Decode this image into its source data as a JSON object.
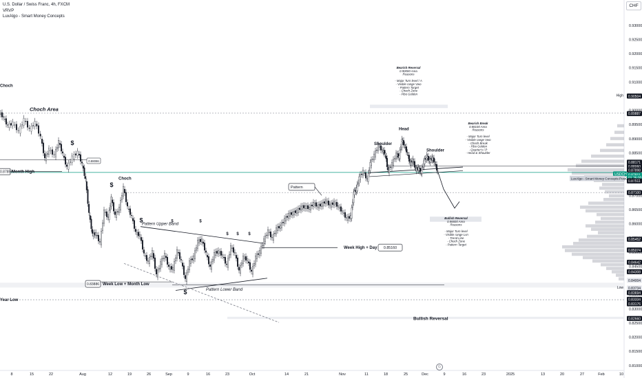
{
  "legend": {
    "symbol_line": "U.S. Dollar / Swiss Franc, 4h, FXCM",
    "volume_line": "VRVP",
    "indicator_line": "LuxAlgo - Smart Money Concepts"
  },
  "currency_label": "CHF",
  "colors": {
    "candle_up": "#131722",
    "candle_down": "#131722",
    "price_line": "#089981",
    "profile": "#b2b5be",
    "dashed": "#9598a1",
    "zone": "#d1d4dc"
  },
  "chart_data": {
    "type": "candlestick",
    "price_axis": {
      "min": 0.8085,
      "max": 0.9365,
      "ticks": [
        "0.93000",
        "0.92500",
        "0.92000",
        "0.91500",
        "0.91000",
        "0.90500",
        "0.90000",
        "0.89500",
        "0.89000",
        "0.88500",
        "0.88000",
        "0.87500",
        "0.87000",
        "0.86500",
        "0.86000",
        "0.85500",
        "0.85000",
        "0.84500",
        "0.84000",
        "0.83500",
        "0.83000",
        "0.82500",
        "0.82000",
        "0.81500",
        "0.81000"
      ]
    },
    "time_axis_labels": [
      "8",
      "15",
      "22",
      "Aug",
      "12",
      "19",
      "26",
      "Sep",
      "9",
      "16",
      "23",
      "Oct",
      "14",
      "21",
      "Nov",
      "11",
      "18",
      "25",
      "Dec",
      "9",
      "16",
      "23",
      "2025",
      "13",
      "20",
      "27",
      "Feb",
      "10"
    ],
    "price_tags": [
      {
        "text": "High",
        "kind": "label",
        "price": 0.9053
      },
      {
        "text": "0.90504",
        "kind": "dark",
        "price": 0.90504
      },
      {
        "text": "0.89887",
        "kind": "dark",
        "price": 0.89887
      },
      {
        "text": "0.88171",
        "kind": "dark",
        "price": 0.88171
      },
      {
        "text": "0.88060",
        "kind": "dark",
        "price": 0.8803
      },
      {
        "text": "0.87898",
        "kind": "dark",
        "price": 0.87898
      },
      {
        "text": "USDCHF",
        "kind": "green",
        "price": 0.8776
      },
      {
        "text": "0.87811",
        "kind": "green",
        "price": 0.8772
      },
      {
        "text": "01:36:00",
        "kind": "green",
        "price": 0.8762
      },
      {
        "text": "0.87511",
        "kind": "dark",
        "price": 0.87511
      },
      {
        "text": "0.87100",
        "kind": "dark",
        "price": 0.871
      },
      {
        "text": "0.85452",
        "kind": "dark",
        "price": 0.85452
      },
      {
        "text": "0.85074",
        "kind": "dark",
        "price": 0.85074
      },
      {
        "text": "0.84642",
        "kind": "dark",
        "price": 0.84642
      },
      {
        "text": "0.84308",
        "kind": "dark",
        "price": 0.84308
      },
      {
        "text": "0.84004",
        "kind": "light",
        "price": 0.84004
      },
      {
        "text": "Low",
        "kind": "label",
        "price": 0.8376
      },
      {
        "text": "0.83734",
        "kind": "light",
        "price": 0.83734
      },
      {
        "text": "0.83694",
        "kind": "dark",
        "price": 0.8357
      },
      {
        "text": "0.83334",
        "kind": "dark",
        "price": 0.83334
      },
      {
        "text": "0.83176",
        "kind": "dark",
        "price": 0.83176
      },
      {
        "text": "0.82660",
        "kind": "dark",
        "price": 0.8266
      }
    ],
    "price_series": [
      {
        "x": 0,
        "y": 0.8992
      },
      {
        "x": 6,
        "y": 0.8975
      },
      {
        "x": 12,
        "y": 0.8945
      },
      {
        "x": 20,
        "y": 0.8955
      },
      {
        "x": 28,
        "y": 0.8925
      },
      {
        "x": 36,
        "y": 0.8968
      },
      {
        "x": 44,
        "y": 0.8932
      },
      {
        "x": 52,
        "y": 0.8958
      },
      {
        "x": 60,
        "y": 0.8905
      },
      {
        "x": 66,
        "y": 0.8828
      },
      {
        "x": 72,
        "y": 0.8862
      },
      {
        "x": 80,
        "y": 0.8842
      },
      {
        "x": 86,
        "y": 0.889
      },
      {
        "x": 92,
        "y": 0.8845
      },
      {
        "x": 98,
        "y": 0.8798
      },
      {
        "x": 106,
        "y": 0.8835
      },
      {
        "x": 114,
        "y": 0.8852
      },
      {
        "x": 120,
        "y": 0.881
      },
      {
        "x": 125,
        "y": 0.8755
      },
      {
        "x": 130,
        "y": 0.8635
      },
      {
        "x": 135,
        "y": 0.8562
      },
      {
        "x": 140,
        "y": 0.8565
      },
      {
        "x": 146,
        "y": 0.8532
      },
      {
        "x": 152,
        "y": 0.8645
      },
      {
        "x": 158,
        "y": 0.862
      },
      {
        "x": 162,
        "y": 0.869
      },
      {
        "x": 168,
        "y": 0.8628
      },
      {
        "x": 174,
        "y": 0.8655
      },
      {
        "x": 180,
        "y": 0.8728
      },
      {
        "x": 186,
        "y": 0.8658
      },
      {
        "x": 192,
        "y": 0.8625
      },
      {
        "x": 198,
        "y": 0.8568
      },
      {
        "x": 204,
        "y": 0.8558
      },
      {
        "x": 210,
        "y": 0.8492
      },
      {
        "x": 216,
        "y": 0.8465
      },
      {
        "x": 222,
        "y": 0.8502
      },
      {
        "x": 228,
        "y": 0.8418
      },
      {
        "x": 234,
        "y": 0.8462
      },
      {
        "x": 240,
        "y": 0.8492
      },
      {
        "x": 246,
        "y": 0.8445
      },
      {
        "x": 252,
        "y": 0.8442
      },
      {
        "x": 258,
        "y": 0.8505
      },
      {
        "x": 264,
        "y": 0.8468
      },
      {
        "x": 270,
        "y": 0.8402
      },
      {
        "x": 276,
        "y": 0.8465
      },
      {
        "x": 282,
        "y": 0.8482
      },
      {
        "x": 288,
        "y": 0.8538
      },
      {
        "x": 294,
        "y": 0.8542
      },
      {
        "x": 300,
        "y": 0.8495
      },
      {
        "x": 306,
        "y": 0.8445
      },
      {
        "x": 312,
        "y": 0.8495
      },
      {
        "x": 318,
        "y": 0.8502
      },
      {
        "x": 324,
        "y": 0.8488
      },
      {
        "x": 330,
        "y": 0.8452
      },
      {
        "x": 336,
        "y": 0.8518
      },
      {
        "x": 342,
        "y": 0.8495
      },
      {
        "x": 348,
        "y": 0.8432
      },
      {
        "x": 354,
        "y": 0.8482
      },
      {
        "x": 360,
        "y": 0.8472
      },
      {
        "x": 366,
        "y": 0.8428
      },
      {
        "x": 372,
        "y": 0.8482
      },
      {
        "x": 378,
        "y": 0.8502
      },
      {
        "x": 384,
        "y": 0.8542
      },
      {
        "x": 390,
        "y": 0.8575
      },
      {
        "x": 396,
        "y": 0.8548
      },
      {
        "x": 402,
        "y": 0.8582
      },
      {
        "x": 408,
        "y": 0.8592
      },
      {
        "x": 414,
        "y": 0.8615
      },
      {
        "x": 420,
        "y": 0.8632
      },
      {
        "x": 426,
        "y": 0.8638
      },
      {
        "x": 432,
        "y": 0.8645
      },
      {
        "x": 438,
        "y": 0.8658
      },
      {
        "x": 444,
        "y": 0.866
      },
      {
        "x": 450,
        "y": 0.8655
      },
      {
        "x": 456,
        "y": 0.8672
      },
      {
        "x": 462,
        "y": 0.8662
      },
      {
        "x": 468,
        "y": 0.8668
      },
      {
        "x": 474,
        "y": 0.868
      },
      {
        "x": 480,
        "y": 0.8665
      },
      {
        "x": 486,
        "y": 0.8675
      },
      {
        "x": 492,
        "y": 0.866
      },
      {
        "x": 498,
        "y": 0.8642
      },
      {
        "x": 504,
        "y": 0.8618
      },
      {
        "x": 510,
        "y": 0.8625
      },
      {
        "x": 514,
        "y": 0.8708
      },
      {
        "x": 518,
        "y": 0.8722
      },
      {
        "x": 522,
        "y": 0.8762
      },
      {
        "x": 528,
        "y": 0.8785
      },
      {
        "x": 534,
        "y": 0.8755
      },
      {
        "x": 538,
        "y": 0.8812
      },
      {
        "x": 544,
        "y": 0.8842
      },
      {
        "x": 550,
        "y": 0.8875
      },
      {
        "x": 556,
        "y": 0.8858
      },
      {
        "x": 560,
        "y": 0.8845
      },
      {
        "x": 564,
        "y": 0.8785
      },
      {
        "x": 570,
        "y": 0.8812
      },
      {
        "x": 576,
        "y": 0.8845
      },
      {
        "x": 580,
        "y": 0.8835
      },
      {
        "x": 584,
        "y": 0.8895
      },
      {
        "x": 588,
        "y": 0.8875
      },
      {
        "x": 592,
        "y": 0.8848
      },
      {
        "x": 596,
        "y": 0.8812
      },
      {
        "x": 600,
        "y": 0.8825
      },
      {
        "x": 604,
        "y": 0.8792
      },
      {
        "x": 608,
        "y": 0.8795
      },
      {
        "x": 612,
        "y": 0.8782
      },
      {
        "x": 616,
        "y": 0.8818
      },
      {
        "x": 620,
        "y": 0.8838
      },
      {
        "x": 624,
        "y": 0.8822
      },
      {
        "x": 628,
        "y": 0.8832
      },
      {
        "x": 632,
        "y": 0.8815
      },
      {
        "x": 636,
        "y": 0.8781
      }
    ],
    "projection_path": [
      {
        "x": 636,
        "y": 0.8781
      },
      {
        "x": 644,
        "y": 0.8722
      },
      {
        "x": 660,
        "y": 0.8655
      },
      {
        "x": 667,
        "y": 0.8678
      }
    ],
    "volume_profile": [
      {
        "price": 0.8945,
        "len": 10
      },
      {
        "price": 0.8922,
        "len": 14
      },
      {
        "price": 0.89,
        "len": 20
      },
      {
        "price": 0.8878,
        "len": 26
      },
      {
        "price": 0.8858,
        "len": 35
      },
      {
        "price": 0.8838,
        "len": 48
      },
      {
        "price": 0.882,
        "len": 62
      },
      {
        "price": 0.8805,
        "len": 70
      },
      {
        "price": 0.879,
        "len": 82
      },
      {
        "price": 0.8778,
        "len": 76
      },
      {
        "price": 0.8765,
        "len": 58
      },
      {
        "price": 0.8752,
        "len": 44
      },
      {
        "price": 0.8738,
        "len": 32
      },
      {
        "price": 0.8725,
        "len": 36
      },
      {
        "price": 0.8712,
        "len": 28
      },
      {
        "price": 0.8698,
        "len": 22
      },
      {
        "price": 0.8685,
        "len": 30
      },
      {
        "price": 0.8672,
        "len": 52
      },
      {
        "price": 0.8658,
        "len": 64
      },
      {
        "price": 0.8645,
        "len": 56
      },
      {
        "price": 0.8632,
        "len": 40
      },
      {
        "price": 0.8618,
        "len": 34
      },
      {
        "price": 0.8605,
        "len": 42
      },
      {
        "price": 0.8592,
        "len": 56
      },
      {
        "price": 0.858,
        "len": 48
      },
      {
        "price": 0.8568,
        "len": 38
      },
      {
        "price": 0.8555,
        "len": 54
      },
      {
        "price": 0.8542,
        "len": 66
      },
      {
        "price": 0.853,
        "len": 74
      },
      {
        "price": 0.8518,
        "len": 90
      },
      {
        "price": 0.8505,
        "len": 86
      },
      {
        "price": 0.8492,
        "len": 76
      },
      {
        "price": 0.848,
        "len": 60
      },
      {
        "price": 0.8468,
        "len": 46
      },
      {
        "price": 0.8455,
        "len": 34
      },
      {
        "price": 0.8442,
        "len": 26
      },
      {
        "price": 0.843,
        "len": 18
      },
      {
        "price": 0.8418,
        "len": 12
      },
      {
        "price": 0.8405,
        "len": 8
      }
    ],
    "annotations": {
      "choch_area": "Choch Area",
      "choch_left": "Choch",
      "choch_mid": "Choch",
      "month_high": "Month High",
      "month_high_price": "0.87857",
      "small_box_price": "0.88086",
      "pattern_upper": "Pattern Upper Band",
      "pattern_lower": "Pattern Lower Band",
      "pattern": "Pattern",
      "week_high": "Week High + Day High",
      "week_high_price": "0.85160",
      "week_low": "Week Low + Month Low",
      "week_low_price": "0.83886",
      "year_low": "Year Low",
      "head": "Head",
      "shoulder_left": "Shoulder",
      "shoulder_right": "Shoulder",
      "bullish_reversal": "Bullish Reversal",
      "dollar": "$",
      "bearish_reversal_block": [
        "Bearish Reversal",
        "0.90000 Area",
        "Reasons",
        "",
        "- Major Turn level / A",
        "- Visible range Vwo",
        "- Pattern Target",
        "- Choch Zone",
        "- Fibo Golden"
      ],
      "bearish_break_block": [
        "Bearish Break",
        "0.88100 Area",
        "Reasons",
        "",
        "- Major Turn level",
        "- Visible range Vwo",
        "- Choch Break",
        "- Fibo Golden",
        "- Quarter's / P",
        "- Head & Shoulder"
      ],
      "bullish_reversal_block": [
        "Bullish Reversal",
        "0.86600 Area",
        "Reasons",
        "",
        "- Major Turn level",
        "- Visible range Lvn",
        "- Trend Line",
        "- Choch Zone",
        "- Pattern Target"
      ],
      "indicator_tag": "LuxAlgo - Smart Money Concepts:PostCandle",
      "settings_glyph": "G"
    }
  }
}
